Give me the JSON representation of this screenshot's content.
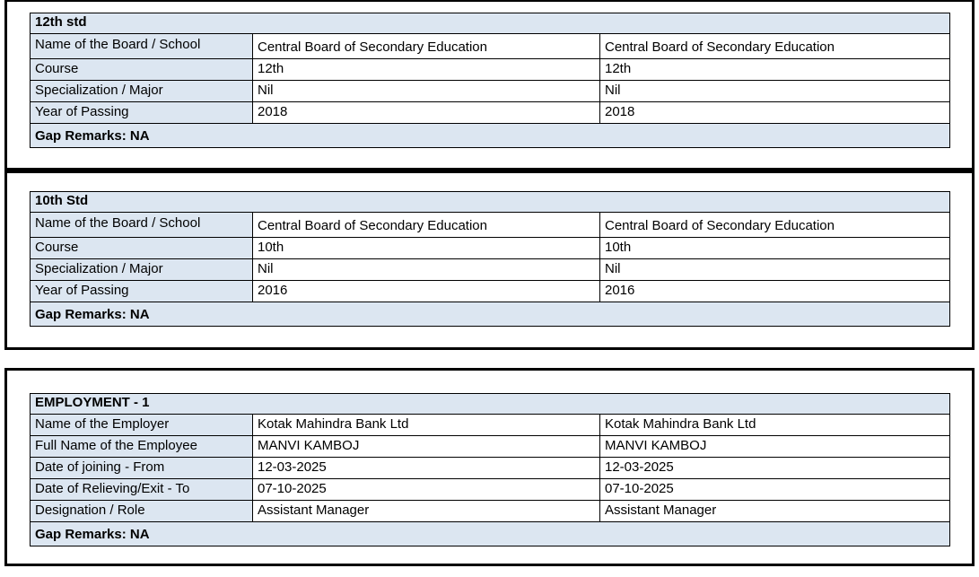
{
  "colors": {
    "header_bg": "#DCE6F1",
    "border": "#000000",
    "value_bg": "#FFFFFF",
    "text": "#000000"
  },
  "sections": [
    {
      "title": "12th std",
      "rows": [
        {
          "label": "Name of the Board / School",
          "value1": "Central Board of Secondary Education",
          "value2": "Central Board of Secondary Education"
        },
        {
          "label": "Course",
          "value1": "12th",
          "value2": "12th"
        },
        {
          "label": "Specialization / Major",
          "value1": "Nil",
          "value2": "Nil"
        },
        {
          "label": "Year of Passing",
          "value1": "2018",
          "value2": "2018"
        }
      ],
      "gap_remarks": "Gap Remarks: NA"
    },
    {
      "title": "10th Std",
      "rows": [
        {
          "label": "Name of the Board / School",
          "value1": "Central Board of Secondary Education",
          "value2": "Central Board of Secondary Education"
        },
        {
          "label": "Course",
          "value1": "10th",
          "value2": "10th"
        },
        {
          "label": "Specialization / Major",
          "value1": "Nil",
          "value2": "Nil"
        },
        {
          "label": "Year of Passing",
          "value1": "2016",
          "value2": "2016"
        }
      ],
      "gap_remarks": "Gap Remarks: NA"
    },
    {
      "title": "EMPLOYMENT - 1",
      "rows": [
        {
          "label": "Name of the Employer",
          "value1": "Kotak Mahindra Bank Ltd",
          "value2": "Kotak Mahindra Bank Ltd"
        },
        {
          "label": "Full Name of the Employee",
          "value1": "MANVI KAMBOJ",
          "value2": "MANVI KAMBOJ"
        },
        {
          "label": "Date of joining - From",
          "value1": "12-03-2025",
          "value2": "12-03-2025"
        },
        {
          "label": "Date of Relieving/Exit - To",
          "value1": "07-10-2025",
          "value2": "07-10-2025"
        },
        {
          "label": "Designation / Role",
          "value1": "Assistant Manager",
          "value2": "Assistant Manager"
        }
      ],
      "gap_remarks": "Gap Remarks: NA"
    }
  ]
}
